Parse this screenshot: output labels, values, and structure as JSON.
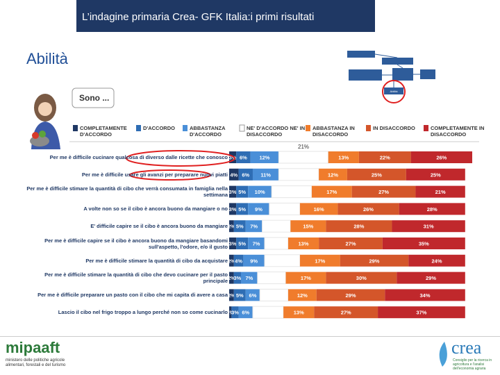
{
  "header": {
    "title": "L’indagine primaria Crea- GFK Italia:i primi risultati",
    "subtitle": "Abilità",
    "bubble": "Sono ...",
    "diagram_highlight": "Abilità"
  },
  "chart_data": {
    "type": "stacked-bar-horizontal",
    "categories": [
      "Per me è difficile cucinare qualcosa di diverso dalle ricette che conosco",
      "Per me è difficile usare gli avanzi per preparare nuovi piatti",
      "Per me è difficile stimare la quantità di cibo che verrà consumata in famiglia nella settimana",
      "A volte non so se il cibo è ancora buono da mangiare o no",
      "E' difficile capire se il cibo è ancora buono da mangiare",
      "Per me è difficile capire se il cibo è ancora buono da mangiare basandomi sull'aspetto, l'odore, e/o il gusto",
      "Per me è difficile stimare la quantità di cibo da acquistare",
      "Per me è difficile stimare la quantità di cibo che devo cucinare per il pasto principale",
      "Per me è difficile preparare un pasto con il cibo che mi capita di avere a casa",
      "Lascio il cibo nel frigo troppo a lungo perché non so come cucinarlo"
    ],
    "xlim": [
      0,
      103
    ],
    "series": [
      {
        "name": "COMPLETAMENTE D'ACCORDO",
        "color": "#1f3864",
        "values": [
          3,
          4,
          3,
          3,
          2,
          3,
          2,
          2,
          2,
          1
        ],
        "value_labels": [
          "3%",
          "4%",
          "3%",
          "3%",
          "2%",
          "3%",
          "2%",
          "2%",
          "2%",
          "1%"
        ]
      },
      {
        "name": "D'ACCORDO",
        "color": "#2e6db4",
        "values": [
          6,
          6,
          5,
          5,
          5,
          5,
          4,
          3,
          5,
          3
        ],
        "value_labels": [
          "6%",
          "6%",
          "5%",
          "5%",
          "5%",
          "5%",
          "4%",
          "3%",
          "5%",
          "3%"
        ]
      },
      {
        "name": "ABBASTANZA D'ACCORDO",
        "color": "#4a8fd8",
        "values": [
          12,
          11,
          10,
          9,
          7,
          7,
          9,
          7,
          6,
          6
        ],
        "value_labels": [
          "12%",
          "11%",
          "10%",
          "9%",
          "7%",
          "7%",
          "9%",
          "7%",
          "6%",
          "6%"
        ]
      },
      {
        "name": "NE' D'ACCORDO NE' IN DISACCORDO",
        "color": "#ffffff",
        "values": [
          21,
          17,
          17,
          13,
          12,
          10,
          15,
          12,
          12,
          13
        ],
        "value_labels": [
          "21%",
          null,
          null,
          null,
          null,
          null,
          null,
          null,
          null,
          null
        ]
      },
      {
        "name": "ABBASTANZA IN DISACCORDO",
        "color": "#f07c2c",
        "values": [
          13,
          12,
          17,
          16,
          15,
          13,
          17,
          17,
          12,
          13
        ],
        "value_labels": [
          "13%",
          "12%",
          "17%",
          "16%",
          "15%",
          "13%",
          "17%",
          "17%",
          "12%",
          "13%"
        ]
      },
      {
        "name": "IN DISACCORDO",
        "color": "#d4562a",
        "values": [
          22,
          25,
          27,
          26,
          28,
          27,
          29,
          30,
          29,
          27
        ],
        "value_labels": [
          "22%",
          "25%",
          "27%",
          "26%",
          "28%",
          "27%",
          "29%",
          "30%",
          "29%",
          "27%"
        ]
      },
      {
        "name": "COMPLETAMENTE IN DISACCORDO",
        "color": "#c0282c",
        "values": [
          26,
          25,
          21,
          28,
          31,
          35,
          24,
          29,
          34,
          37
        ],
        "value_labels": [
          "26%",
          "25%",
          "21%",
          "28%",
          "31%",
          "35%",
          "24%",
          "29%",
          "34%",
          "37%"
        ]
      }
    ]
  },
  "footer": {
    "left_logo": "mipaaft",
    "left_caption": "ministero delle politiche agricole alimentari, forestali e del turismo",
    "right_logo": "crea",
    "right_caption": "Consiglio per la ricerca in agricoltura e l'analisi dell'economia agraria"
  }
}
